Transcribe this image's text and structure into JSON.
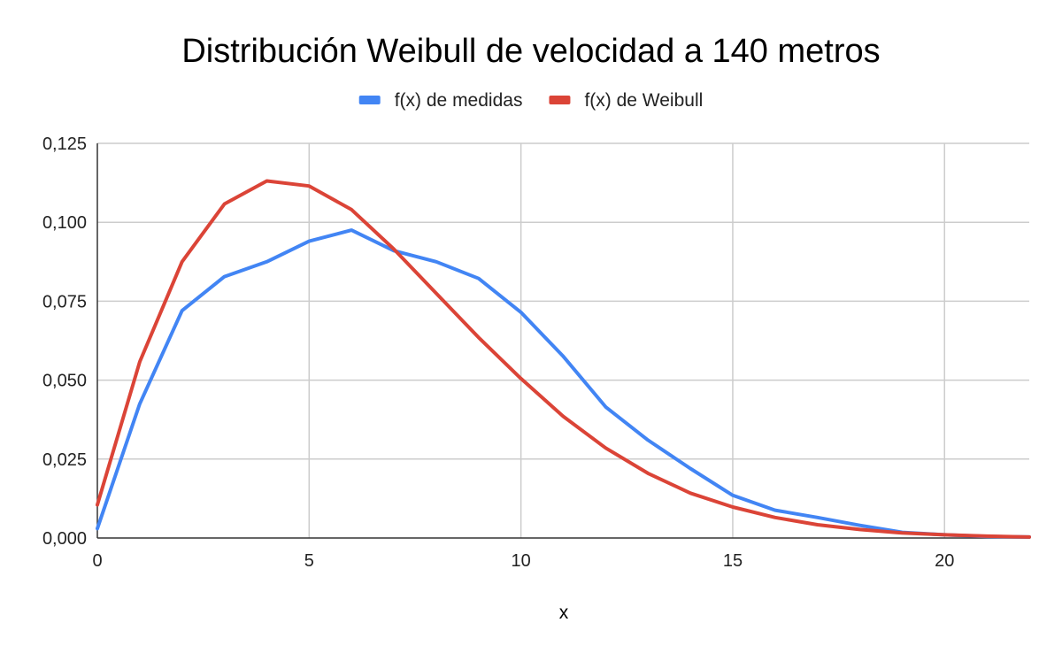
{
  "chart_data": {
    "type": "line",
    "title": "Distribución Weibull de velocidad a 140 metros",
    "xlabel": "x",
    "ylabel": "",
    "xlim": [
      0,
      22
    ],
    "ylim": [
      0,
      0.125
    ],
    "x_ticks": [
      0,
      5,
      10,
      15,
      20
    ],
    "x_tick_labels": [
      "0",
      "5",
      "10",
      "15",
      "20"
    ],
    "y_ticks": [
      0,
      0.025,
      0.05,
      0.075,
      0.1,
      0.125
    ],
    "y_tick_labels": [
      "0,000",
      "0,025",
      "0,050",
      "0,075",
      "0,100",
      "0,125"
    ],
    "grid": true,
    "legend_position": "top",
    "x": [
      0,
      1,
      2,
      3,
      4,
      5,
      6,
      7,
      8,
      9,
      10,
      11,
      12,
      13,
      14,
      15,
      16,
      17,
      18,
      19,
      20,
      21,
      22
    ],
    "series": [
      {
        "name": "f(x) de medidas",
        "color": "#4285f4",
        "values": [
          0.003,
          0.0425,
          0.072,
          0.0828,
          0.0875,
          0.094,
          0.0975,
          0.091,
          0.0875,
          0.0822,
          0.0715,
          0.0575,
          0.0415,
          0.031,
          0.022,
          0.0135,
          0.0088,
          0.0065,
          0.004,
          0.0018,
          0.001,
          0.0005,
          0.0003
        ]
      },
      {
        "name": "f(x) de Weibull",
        "color": "#db4437",
        "values": [
          0.0105,
          0.0558,
          0.0875,
          0.1058,
          0.1131,
          0.1115,
          0.104,
          0.0915,
          0.0775,
          0.0635,
          0.0505,
          0.0385,
          0.0285,
          0.0205,
          0.0142,
          0.0098,
          0.0065,
          0.0042,
          0.0027,
          0.0016,
          0.001,
          0.0006,
          0.0003
        ]
      }
    ]
  }
}
